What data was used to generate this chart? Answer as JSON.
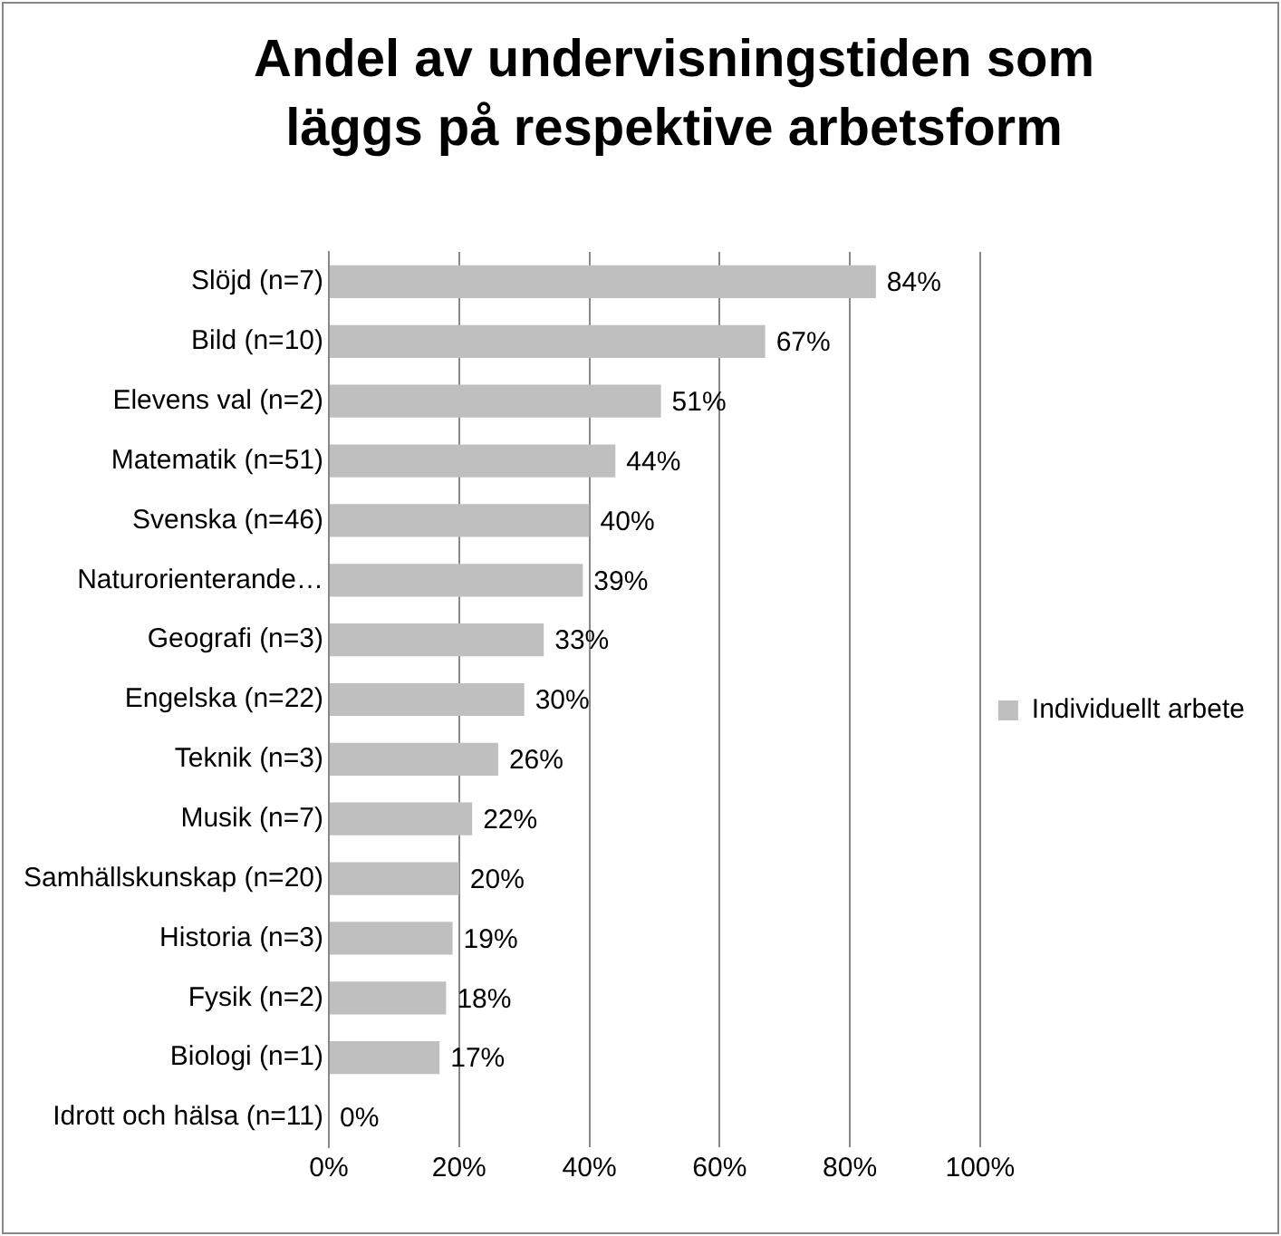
{
  "chart_data": {
    "type": "bar",
    "orientation": "horizontal",
    "title": "Andel av undervisningstiden som läggs på respektive arbetsform",
    "categories": [
      "Slöjd (n=7)",
      "Bild (n=10)",
      "Elevens val (n=2)",
      "Matematik (n=51)",
      "Svenska (n=46)",
      "Naturorienterande…",
      "Geografi (n=3)",
      "Engelska (n=22)",
      "Teknik (n=3)",
      "Musik (n=7)",
      "Samhällskunskap (n=20)",
      "Historia (n=3)",
      "Fysik (n=2)",
      "Biologi (n=1)",
      "Idrott och hälsa (n=11)"
    ],
    "series": [
      {
        "name": "Individuellt arbete",
        "color": "#bfbfbf",
        "values": [
          84,
          67,
          51,
          44,
          40,
          39,
          33,
          30,
          26,
          22,
          20,
          19,
          18,
          17,
          0
        ],
        "value_labels": [
          "84%",
          "67%",
          "51%",
          "44%",
          "40%",
          "39%",
          "33%",
          "30%",
          "26%",
          "22%",
          "20%",
          "19%",
          "18%",
          "17%",
          "0%"
        ]
      }
    ],
    "xlim": [
      0,
      100
    ],
    "xticks": [
      {
        "value": 0,
        "label": "0%"
      },
      {
        "value": 20,
        "label": "20%"
      },
      {
        "value": 40,
        "label": "40%"
      },
      {
        "value": 60,
        "label": "60%"
      },
      {
        "value": 80,
        "label": "80%"
      },
      {
        "value": 100,
        "label": "100%"
      }
    ],
    "grid": "x",
    "legend": "right"
  }
}
